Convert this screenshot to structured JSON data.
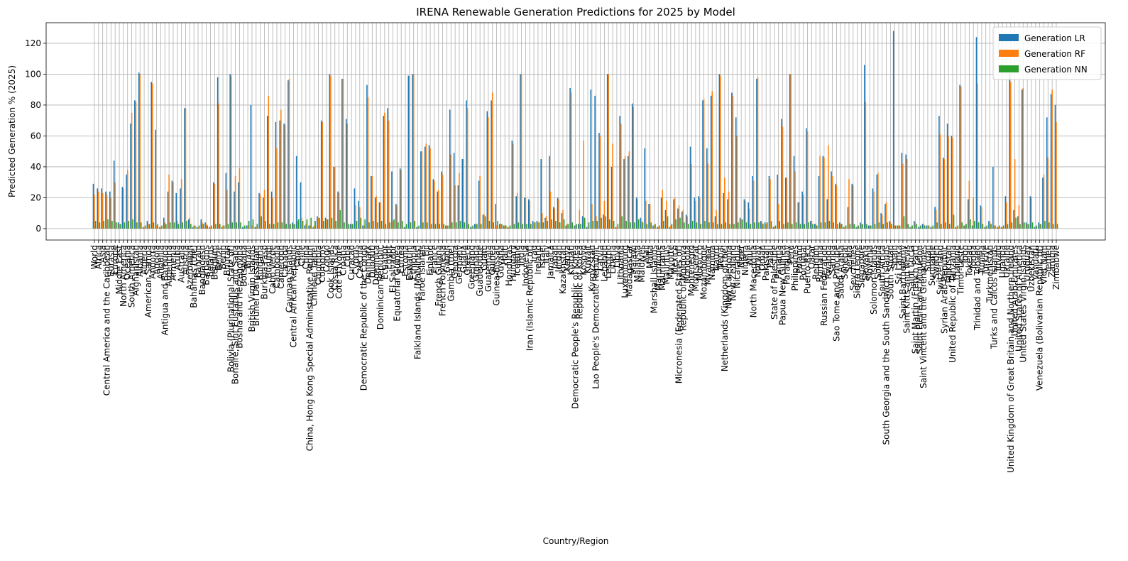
{
  "chart_data": {
    "type": "bar",
    "title": "IRENA Renewable Generation Predictions for 2025 by Model",
    "x_label": "Country/Region",
    "y_label": "Predicted Generation % (2025)",
    "categories": [
      "World",
      "Africa",
      "Asia",
      "Central America and the Caribbean",
      "Eurasia",
      "Europe",
      "Middle East",
      "North America",
      "Oceania",
      "South America",
      "Afghanistan",
      "Albania",
      "Algeria",
      "American Samoa",
      "Andorra",
      "Angola",
      "Anguilla",
      "Antigua and Barbuda",
      "Argentina",
      "Armenia",
      "Aruba",
      "Australia",
      "Austria",
      "Azerbaijan",
      "Bahamas (the)",
      "Bahrain",
      "Bangladesh",
      "Barbados",
      "Belarus",
      "Belgium",
      "Belize",
      "Benin",
      "Bhutan",
      "Bolivia (Plurinational State of)",
      "Bonaire, Sint Eustatius and Saba",
      "Bosnia and Herzegovina",
      "Botswana",
      "Brazil",
      "British Virgin Islands",
      "Brunei Darussalam",
      "Bulgaria",
      "Burkina Faso",
      "Burundi",
      "Cabo Verde",
      "Cambodia",
      "Cameroon",
      "Canada",
      "Cayman Islands",
      "Central African Republic",
      "Chad",
      "Chile",
      "China",
      "China, Hong Kong Special Administrative Region",
      "Chinese Taipei",
      "Colombia",
      "Comoros",
      "Congo",
      "Cook Islands",
      "Costa Rica",
      "Cote d'Ivoire",
      "Croatia",
      "Cuba",
      "Curacao",
      "Cyprus",
      "Czechia",
      "Democratic Republic of the Congo",
      "Denmark",
      "Djibouti",
      "Dominica",
      "Dominican Republic",
      "Ecuador",
      "Egypt",
      "El Salvador",
      "Equatorial Guinea",
      "Eritrea",
      "Estonia",
      "Eswatini",
      "Ethiopia",
      "Falkland Islands (Malvinas)",
      "Faroe Islands",
      "Fiji",
      "Finland",
      "France",
      "French Guiana",
      "French Polynesia",
      "Gabon",
      "Gambia (the)",
      "Georgia",
      "Germany",
      "Ghana",
      "Greece",
      "Greenland",
      "Grenada",
      "Guadeloupe",
      "Guam",
      "Guatemala",
      "Guinea",
      "Guinea-Bissau",
      "Guyana",
      "Haiti",
      "Honduras",
      "Hungary",
      "Iceland",
      "India",
      "Indonesia",
      "Iran (Islamic Republic of)",
      "Iraq",
      "Ireland",
      "Israel",
      "Italy",
      "Jamaica",
      "Japan",
      "Jordan",
      "Kazakhstan",
      "Kenya",
      "Kiribati",
      "Democratic People's Republic of Korea",
      "Republic of Korea",
      "Kosovo",
      "Kuwait",
      "Kyrgyzstan",
      "Lao People's Democratic Republic",
      "Latvia",
      "Lebanon",
      "Lesotho",
      "Liberia",
      "Libya",
      "Lithuania",
      "Luxembourg",
      "Madagascar",
      "Malawi",
      "Malaysia",
      "Maldives",
      "Mali",
      "Malta",
      "Marshall Islands",
      "Martinique",
      "Mauritania",
      "Mauritius",
      "Mayotte",
      "Mexico",
      "Micronesia (Federated States of)",
      "Republic of Moldova",
      "Mongolia",
      "Montenegro",
      "Montserrat",
      "Morocco",
      "Mozambique",
      "Myanmar",
      "Namibia",
      "Nauru",
      "Nepal",
      "Netherlands (Kingdom of the)",
      "New Caledonia",
      "New Zealand",
      "Nicaragua",
      "Niger",
      "Nigeria",
      "Niue",
      "North Macedonia",
      "Norway",
      "Oman",
      "Pakistan",
      "Palau",
      "State of Palestine",
      "Panama",
      "Papua New Guinea",
      "Paraguay",
      "Peru",
      "Philippines",
      "Poland",
      "Portugal",
      "Puerto Rico",
      "Qatar",
      "Reunion",
      "Romania",
      "Russian Federation",
      "Rwanda",
      "Samoa",
      "Sao Tome and Principe",
      "Saudi Arabia",
      "Senegal",
      "Serbia",
      "Seychelles",
      "Sierra Leone",
      "Singapore",
      "Slovakia",
      "Slovenia",
      "Solomon Islands",
      "Somalia",
      "South Africa",
      "South Georgia and the South Sandwich Islands",
      "South Sudan",
      "Spain",
      "Sri Lanka",
      "Saint Barthelemy",
      "Saint Kitts and Nevis",
      "Saint Lucia",
      "Saint Martin (French Part)",
      "Saint Pierre and Miquelon",
      "Saint Vincent and the Grenadines",
      "Sudan",
      "Suriname",
      "Sweden",
      "Switzerland",
      "Syrian Arab Republic",
      "Tajikistan",
      "United Republic of Tanzania",
      "Thailand",
      "Timor-Leste",
      "Togo",
      "Tokelau",
      "Tonga",
      "Trinidad and Tobago",
      "Tunisia",
      "Turkiye",
      "Turkmenistan",
      "Turks and Caicos Islands",
      "Tuvalu",
      "Uganda",
      "Ukraine",
      "United Kingdom of Great Britain and Northern Ireland",
      "United Arab Emirates",
      "United States of America",
      "United States Virgin Islands",
      "Uruguay",
      "Uzbekistan",
      "Vanuatu",
      "Venezuela (Bolivarian Republic of)",
      "Viet Nam",
      "Yemen",
      "Zambia",
      "Zimbabwe"
    ],
    "series": [
      {
        "name": "Generation LR",
        "color": "#1f77b4",
        "values": [
          29,
          26,
          26,
          24,
          24,
          44,
          4,
          27,
          35,
          68,
          83,
          101,
          1,
          5,
          95,
          64,
          1,
          7,
          24,
          31,
          23,
          26,
          78,
          6,
          1,
          1,
          6,
          4,
          1,
          30,
          98,
          1,
          36,
          100,
          24,
          30,
          1,
          2,
          80,
          1,
          23,
          20,
          73,
          24,
          69,
          70,
          68,
          96,
          4,
          47,
          30,
          2,
          2,
          1,
          8,
          70,
          7,
          100,
          40,
          24,
          97,
          71,
          3,
          26,
          18,
          2,
          93,
          34,
          20,
          17,
          73,
          78,
          37,
          16,
          39,
          1,
          99,
          100,
          1,
          50,
          53,
          54,
          32,
          24,
          37,
          2,
          77,
          49,
          28,
          45,
          83,
          1,
          3,
          31,
          9,
          76,
          83,
          16,
          3,
          2,
          1,
          57,
          21,
          100,
          20,
          19,
          5,
          5,
          45,
          7,
          47,
          14,
          20,
          10,
          2,
          91,
          2,
          3,
          8,
          1,
          90,
          86,
          62,
          9,
          100,
          40,
          1,
          73,
          45,
          47,
          81,
          20,
          7,
          52,
          16,
          2,
          1,
          20,
          12,
          1,
          19,
          13,
          11,
          9,
          53,
          20,
          21,
          83,
          52,
          86,
          8,
          100,
          23,
          19,
          88,
          72,
          7,
          19,
          17,
          34,
          97,
          5,
          4,
          34,
          1,
          35,
          71,
          33,
          100,
          47,
          17,
          24,
          65,
          5,
          3,
          34,
          47,
          19,
          37,
          29,
          4,
          1,
          14,
          29,
          1,
          4,
          106,
          2,
          26,
          35,
          10,
          16,
          5,
          128,
          2,
          49,
          48,
          1,
          5,
          1,
          3,
          2,
          1,
          14,
          73,
          46,
          68,
          60,
          1,
          93,
          2,
          19,
          2,
          124,
          15,
          1,
          5,
          40,
          1,
          1,
          21,
          100,
          12,
          8,
          90,
          4,
          21,
          1,
          4,
          33,
          72,
          87,
          80
        ]
      },
      {
        "name": "Generation RF",
        "color": "#ff7f0e",
        "values": [
          22,
          24,
          23,
          22,
          20,
          30,
          3,
          26,
          38,
          75,
          82,
          100,
          1,
          3,
          94,
          2,
          1,
          4,
          35,
          30,
          5,
          32,
          78,
          7,
          2,
          1,
          4,
          3,
          1,
          29,
          81,
          2,
          25,
          99,
          34,
          39,
          1,
          2,
          2,
          1,
          22,
          25,
          86,
          20,
          52,
          77,
          67,
          97,
          3,
          5,
          7,
          3,
          2,
          2,
          7,
          69,
          6,
          99,
          40,
          23,
          97,
          68,
          3,
          15,
          14,
          2,
          85,
          34,
          21,
          17,
          75,
          70,
          5,
          15,
          38,
          1,
          99,
          100,
          1,
          50,
          55,
          52,
          31,
          25,
          35,
          2,
          48,
          28,
          36,
          45,
          78,
          1,
          3,
          34,
          9,
          72,
          88,
          2,
          3,
          2,
          1,
          55,
          23,
          100,
          20,
          18,
          4,
          4,
          10,
          8,
          24,
          13,
          19,
          12,
          3,
          88,
          2,
          12,
          57,
          1,
          16,
          8,
          60,
          18,
          100,
          55,
          1,
          68,
          47,
          50,
          79,
          19,
          5,
          18,
          16,
          2,
          1,
          25,
          18,
          2,
          20,
          15,
          12,
          8,
          42,
          18,
          20,
          84,
          42,
          89,
          12,
          99,
          33,
          24,
          86,
          60,
          6,
          18,
          13,
          31,
          98,
          4,
          3,
          32,
          1,
          16,
          66,
          33,
          100,
          37,
          17,
          22,
          63,
          5,
          3,
          47,
          46,
          54,
          34,
          28,
          3,
          1,
          32,
          28,
          1,
          3,
          82,
          2,
          24,
          36,
          9,
          17,
          4,
          2,
          2,
          42,
          45,
          1,
          4,
          1,
          3,
          2,
          1,
          12,
          61,
          45,
          60,
          59,
          1,
          92,
          2,
          31,
          20,
          94,
          14,
          1,
          4,
          2,
          1,
          1,
          17,
          95,
          45,
          15,
          91,
          3,
          20,
          1,
          3,
          35,
          46,
          90,
          69
        ]
      },
      {
        "name": "Generation NN",
        "color": "#2ca02c",
        "values": [
          5,
          4,
          5,
          6,
          5,
          4,
          3,
          4,
          5,
          6,
          4,
          4,
          2,
          3,
          4,
          3,
          2,
          3,
          4,
          4,
          3,
          4,
          5,
          3,
          2,
          2,
          3,
          2,
          2,
          3,
          3,
          2,
          3,
          4,
          4,
          4,
          2,
          5,
          6,
          3,
          8,
          5,
          3,
          3,
          4,
          4,
          3,
          3,
          3,
          6,
          5,
          6,
          7,
          5,
          7,
          5,
          6,
          7,
          5,
          12,
          4,
          3,
          3,
          5,
          7,
          6,
          4,
          5,
          4,
          5,
          3,
          4,
          6,
          4,
          5,
          3,
          4,
          5,
          2,
          4,
          4,
          3,
          3,
          3,
          3,
          2,
          4,
          4,
          5,
          4,
          3,
          2,
          3,
          3,
          8,
          5,
          4,
          5,
          3,
          2,
          2,
          3,
          4,
          3,
          3,
          3,
          4,
          4,
          4,
          5,
          6,
          5,
          4,
          6,
          3,
          4,
          3,
          3,
          7,
          4,
          5,
          5,
          7,
          8,
          6,
          5,
          3,
          8,
          5,
          4,
          4,
          6,
          4,
          3,
          4,
          3,
          2,
          5,
          8,
          3,
          6,
          7,
          4,
          3,
          5,
          4,
          3,
          5,
          4,
          4,
          3,
          3,
          4,
          3,
          3,
          4,
          6,
          4,
          3,
          4,
          4,
          3,
          4,
          5,
          2,
          5,
          3,
          4,
          3,
          4,
          3,
          3,
          4,
          3,
          2,
          4,
          4,
          5,
          4,
          3,
          3,
          2,
          3,
          3,
          2,
          3,
          3,
          2,
          3,
          4,
          3,
          4,
          3,
          2,
          2,
          8,
          3,
          2,
          3,
          2,
          2,
          2,
          2,
          4,
          3,
          4,
          3,
          9,
          2,
          4,
          3,
          6,
          5,
          4,
          3,
          2,
          3,
          2,
          2,
          2,
          3,
          4,
          7,
          3,
          4,
          3,
          4,
          2,
          3,
          5,
          4,
          3,
          3
        ]
      }
    ],
    "ylim": [
      -7.4,
      133.3
    ],
    "yticks": [
      0,
      20,
      40,
      60,
      80,
      100,
      120
    ],
    "grid": true,
    "legend": "upper right"
  }
}
